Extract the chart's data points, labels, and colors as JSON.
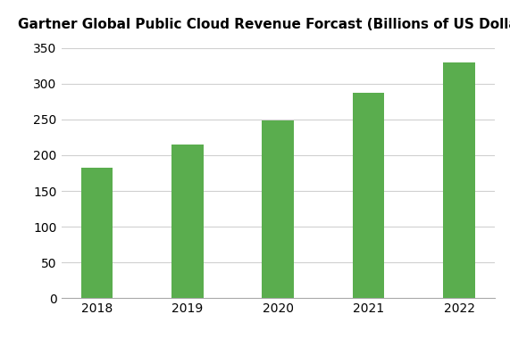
{
  "title": "Gartner Global Public Cloud Revenue Forcast (Billions of US Dollars)",
  "categories": [
    "2018",
    "2019",
    "2020",
    "2021",
    "2022"
  ],
  "values": [
    182,
    215,
    249,
    287,
    330
  ],
  "bar_color": "#5aad4e",
  "ylim": [
    0,
    360
  ],
  "yticks": [
    0,
    50,
    100,
    150,
    200,
    250,
    300,
    350
  ],
  "background_color": "#ffffff",
  "grid_color": "#d0d0d0",
  "title_fontsize": 11,
  "tick_fontsize": 10,
  "bar_width": 0.35
}
